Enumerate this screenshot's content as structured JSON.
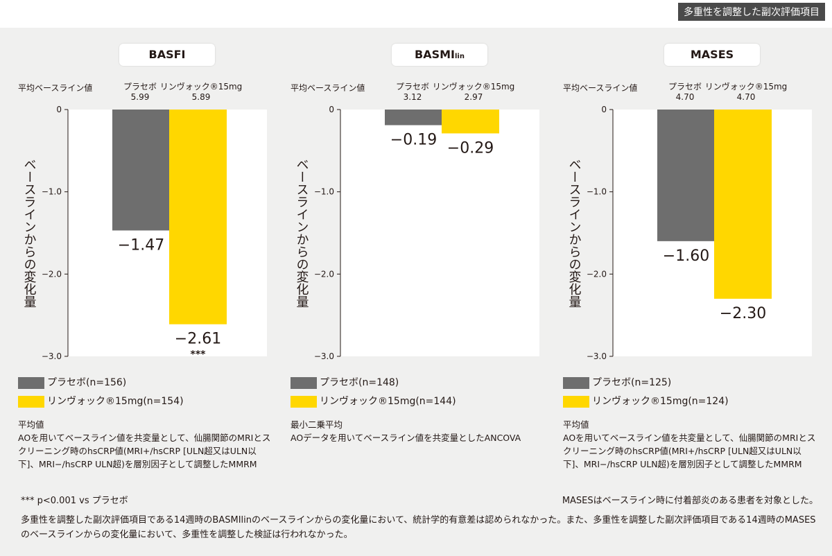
{
  "header": {
    "tag": "多重性を調整した副次評価項目"
  },
  "colors": {
    "placebo": "#6e6e6e",
    "rinvoq": "#ffd700"
  },
  "axis_ticks": [
    "0",
    "−1.0",
    "−2.0",
    "−3.0"
  ],
  "ylabel": "ベースラインからの変化量",
  "baseline_label": "平均ベースライン値",
  "panels": [
    {
      "title": "BASFI",
      "title_sub": "",
      "placebo_head": "プラセボ",
      "placebo_base": "5.99",
      "rinvoq_head": "リンヴォック®15mg",
      "rinvoq_base": "5.89",
      "placebo_value_label": "−1.47",
      "rinvoq_value_label": "−2.61",
      "significance": "***",
      "legend_placebo": "プラセボ(n=156)",
      "legend_rinvoq": "リンヴォック®15mg(n=154)",
      "note_title": "平均値",
      "note_body": "AOを用いてベースライン値を共変量として、仙腸関節のMRIとスクリーニング時のhsCRP値(MRI+/hsCRP [ULN超又はULN以下]、MRI−/hsCRP ULN超)を層別因子として調整したMMRM"
    },
    {
      "title": "BASMI",
      "title_sub": "lin",
      "placebo_head": "プラセボ",
      "placebo_base": "3.12",
      "rinvoq_head": "リンヴォック®15mg",
      "rinvoq_base": "2.97",
      "placebo_value_label": "−0.19",
      "rinvoq_value_label": "−0.29",
      "significance": "",
      "legend_placebo": "プラセボ(n=148)",
      "legend_rinvoq": "リンヴォック®15mg(n=144)",
      "note_title": "最小二乗平均",
      "note_body": "AOデータを用いてベースライン値を共変量としたANCOVA"
    },
    {
      "title": "MASES",
      "title_sub": "",
      "placebo_head": "プラセボ",
      "placebo_base": "4.70",
      "rinvoq_head": "リンヴォック®15mg",
      "rinvoq_base": "4.70",
      "placebo_value_label": "−1.60",
      "rinvoq_value_label": "−2.30",
      "significance": "",
      "legend_placebo": "プラセボ(n=125)",
      "legend_rinvoq": "リンヴォック®15mg(n=124)",
      "note_title": "平均値",
      "note_body": "AOを用いてベースライン値を共変量として、仙腸関節のMRIとスクリーニング時のhsCRP値(MRI+/hsCRP [ULN超又はULN以下]、MRI−/hsCRP ULN超)を層別因子として調整したMMRM"
    }
  ],
  "footnote_left": "*** p<0.001 vs プラセボ",
  "footnote_right": "MASESはベースライン時に付着部炎のある患者を対象とした。",
  "bottom_text": "多重性を調整した副次評価項目である14週時のBASMIlinのベースラインからの変化量において、統計学的有意差は認められなかった。また、多重性を調整した副次評価項目である14週時のMASESのベースラインからの変化量において、多重性を調整した検証は行われなかった。",
  "chart_data": [
    {
      "type": "bar",
      "title": "BASFI",
      "ylabel": "ベースラインからの変化量",
      "ylim": [
        -3.0,
        0
      ],
      "categories": [
        "プラセボ",
        "リンヴォック®15mg"
      ],
      "values": [
        -1.47,
        -2.61
      ]
    },
    {
      "type": "bar",
      "title": "BASMIlin",
      "ylabel": "ベースラインからの変化量",
      "ylim": [
        -3.0,
        0
      ],
      "categories": [
        "プラセボ",
        "リンヴォック®15mg"
      ],
      "values": [
        -0.19,
        -0.29
      ]
    },
    {
      "type": "bar",
      "title": "MASES",
      "ylabel": "ベースラインからの変化量",
      "ylim": [
        -3.0,
        0
      ],
      "categories": [
        "プラセボ",
        "リンヴォック®15mg"
      ],
      "values": [
        -1.6,
        -2.3
      ]
    }
  ]
}
